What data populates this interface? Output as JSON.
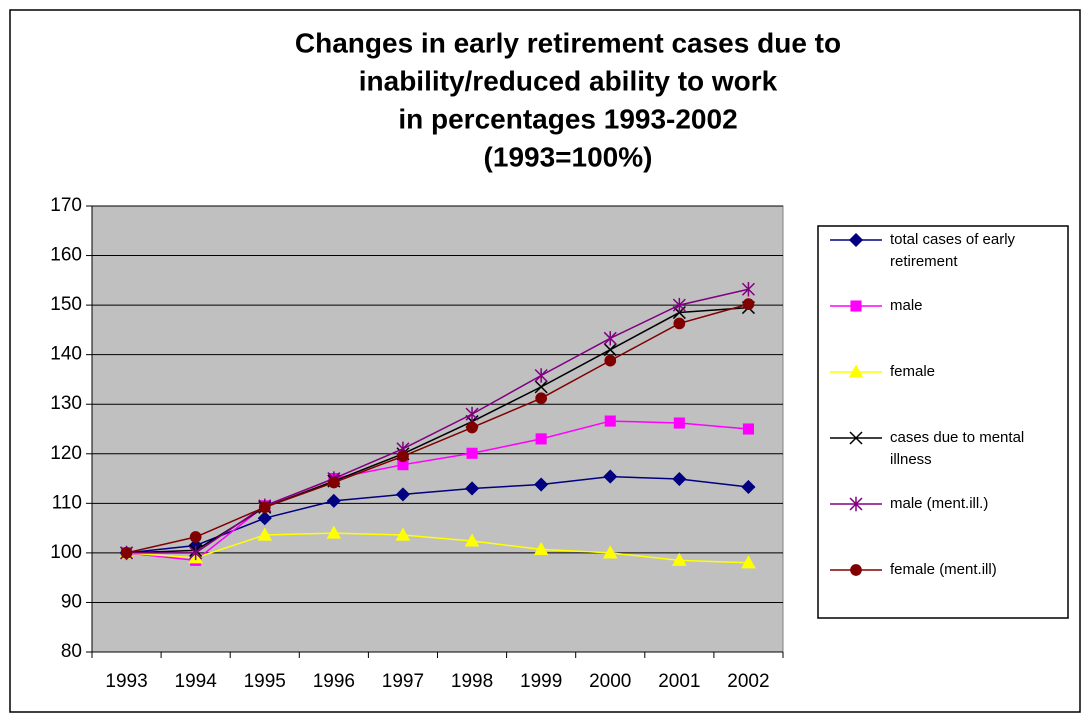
{
  "chart_data": {
    "type": "line",
    "title": [
      "Changes in early retirement cases due to",
      "inability/reduced ability to work",
      "in percentages 1993-2002",
      "(1993=100%)"
    ],
    "categories": [
      "1993",
      "1994",
      "1995",
      "1996",
      "1997",
      "1998",
      "1999",
      "2000",
      "2001",
      "2002"
    ],
    "series": [
      {
        "name": "total cases of early retirement",
        "color": "#000080",
        "marker": "diamond",
        "values": [
          100,
          101.5,
          107,
          110.5,
          111.8,
          113,
          113.8,
          115.4,
          114.9,
          113.3
        ]
      },
      {
        "name": "male",
        "color": "#ff00ff",
        "marker": "square",
        "values": [
          100,
          98.5,
          109.5,
          115,
          117.8,
          120.1,
          123,
          126.6,
          126.2,
          125
        ]
      },
      {
        "name": "female",
        "color": "#ffff00",
        "marker": "triangle",
        "values": [
          100,
          99,
          103.6,
          104,
          103.6,
          102.4,
          100.7,
          100,
          98.5,
          98
        ]
      },
      {
        "name": "cases due to mental illness",
        "color": "#000000",
        "marker": "x",
        "values": [
          100,
          100.5,
          109.2,
          114.5,
          120,
          126.5,
          133.5,
          141,
          148.5,
          149.5
        ]
      },
      {
        "name": "male (ment.ill.)",
        "color": "#800080",
        "marker": "star",
        "values": [
          100,
          100,
          109.5,
          115,
          121,
          128,
          135.8,
          143.3,
          150,
          153.2
        ]
      },
      {
        "name": "female (ment.ill)",
        "color": "#800000",
        "marker": "circle",
        "values": [
          100,
          103.2,
          109.2,
          114.2,
          119.5,
          125.3,
          131.2,
          138.8,
          146.3,
          150.2
        ]
      }
    ],
    "ylim": [
      80,
      170
    ],
    "yticks": [
      80,
      90,
      100,
      110,
      120,
      130,
      140,
      150,
      160,
      170
    ],
    "grid": true,
    "legend": "right",
    "plot_background": "#c0c0c0"
  }
}
